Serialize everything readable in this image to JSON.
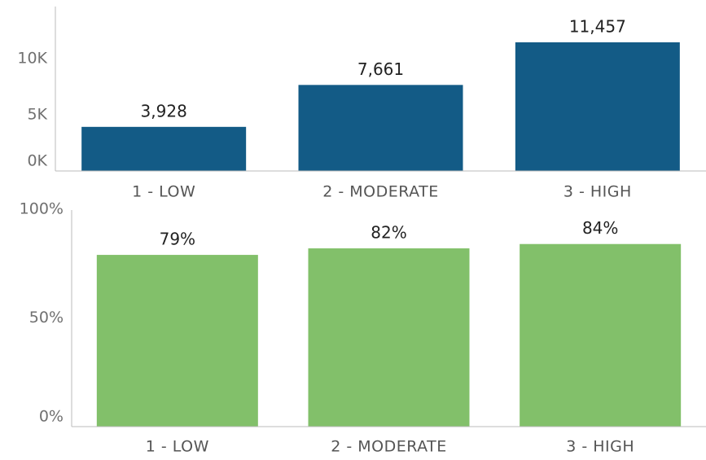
{
  "chart_data": [
    {
      "type": "bar",
      "categories": [
        "1 - LOW",
        "2 - MODERATE",
        "3 - HIGH"
      ],
      "values": [
        3928,
        7661,
        11457
      ],
      "value_labels": [
        "3,928",
        "7,661",
        "11,457"
      ],
      "color": "#135b86",
      "ylim": [
        0,
        14500
      ],
      "yticks": [
        {
          "value": 0,
          "label": "0K"
        },
        {
          "value": 5000,
          "label": "5K"
        },
        {
          "value": 10000,
          "label": "10K"
        }
      ]
    },
    {
      "type": "bar",
      "categories": [
        "1 - LOW",
        "2 - MODERATE",
        "3 - HIGH"
      ],
      "values": [
        79,
        82,
        84
      ],
      "value_labels": [
        "79%",
        "82%",
        "84%"
      ],
      "color": "#82c06a",
      "ylim": [
        0,
        100
      ],
      "yticks": [
        {
          "value": 0,
          "label": "0%"
        },
        {
          "value": 50,
          "label": "50%"
        },
        {
          "value": 100,
          "label": "100%"
        }
      ]
    }
  ]
}
